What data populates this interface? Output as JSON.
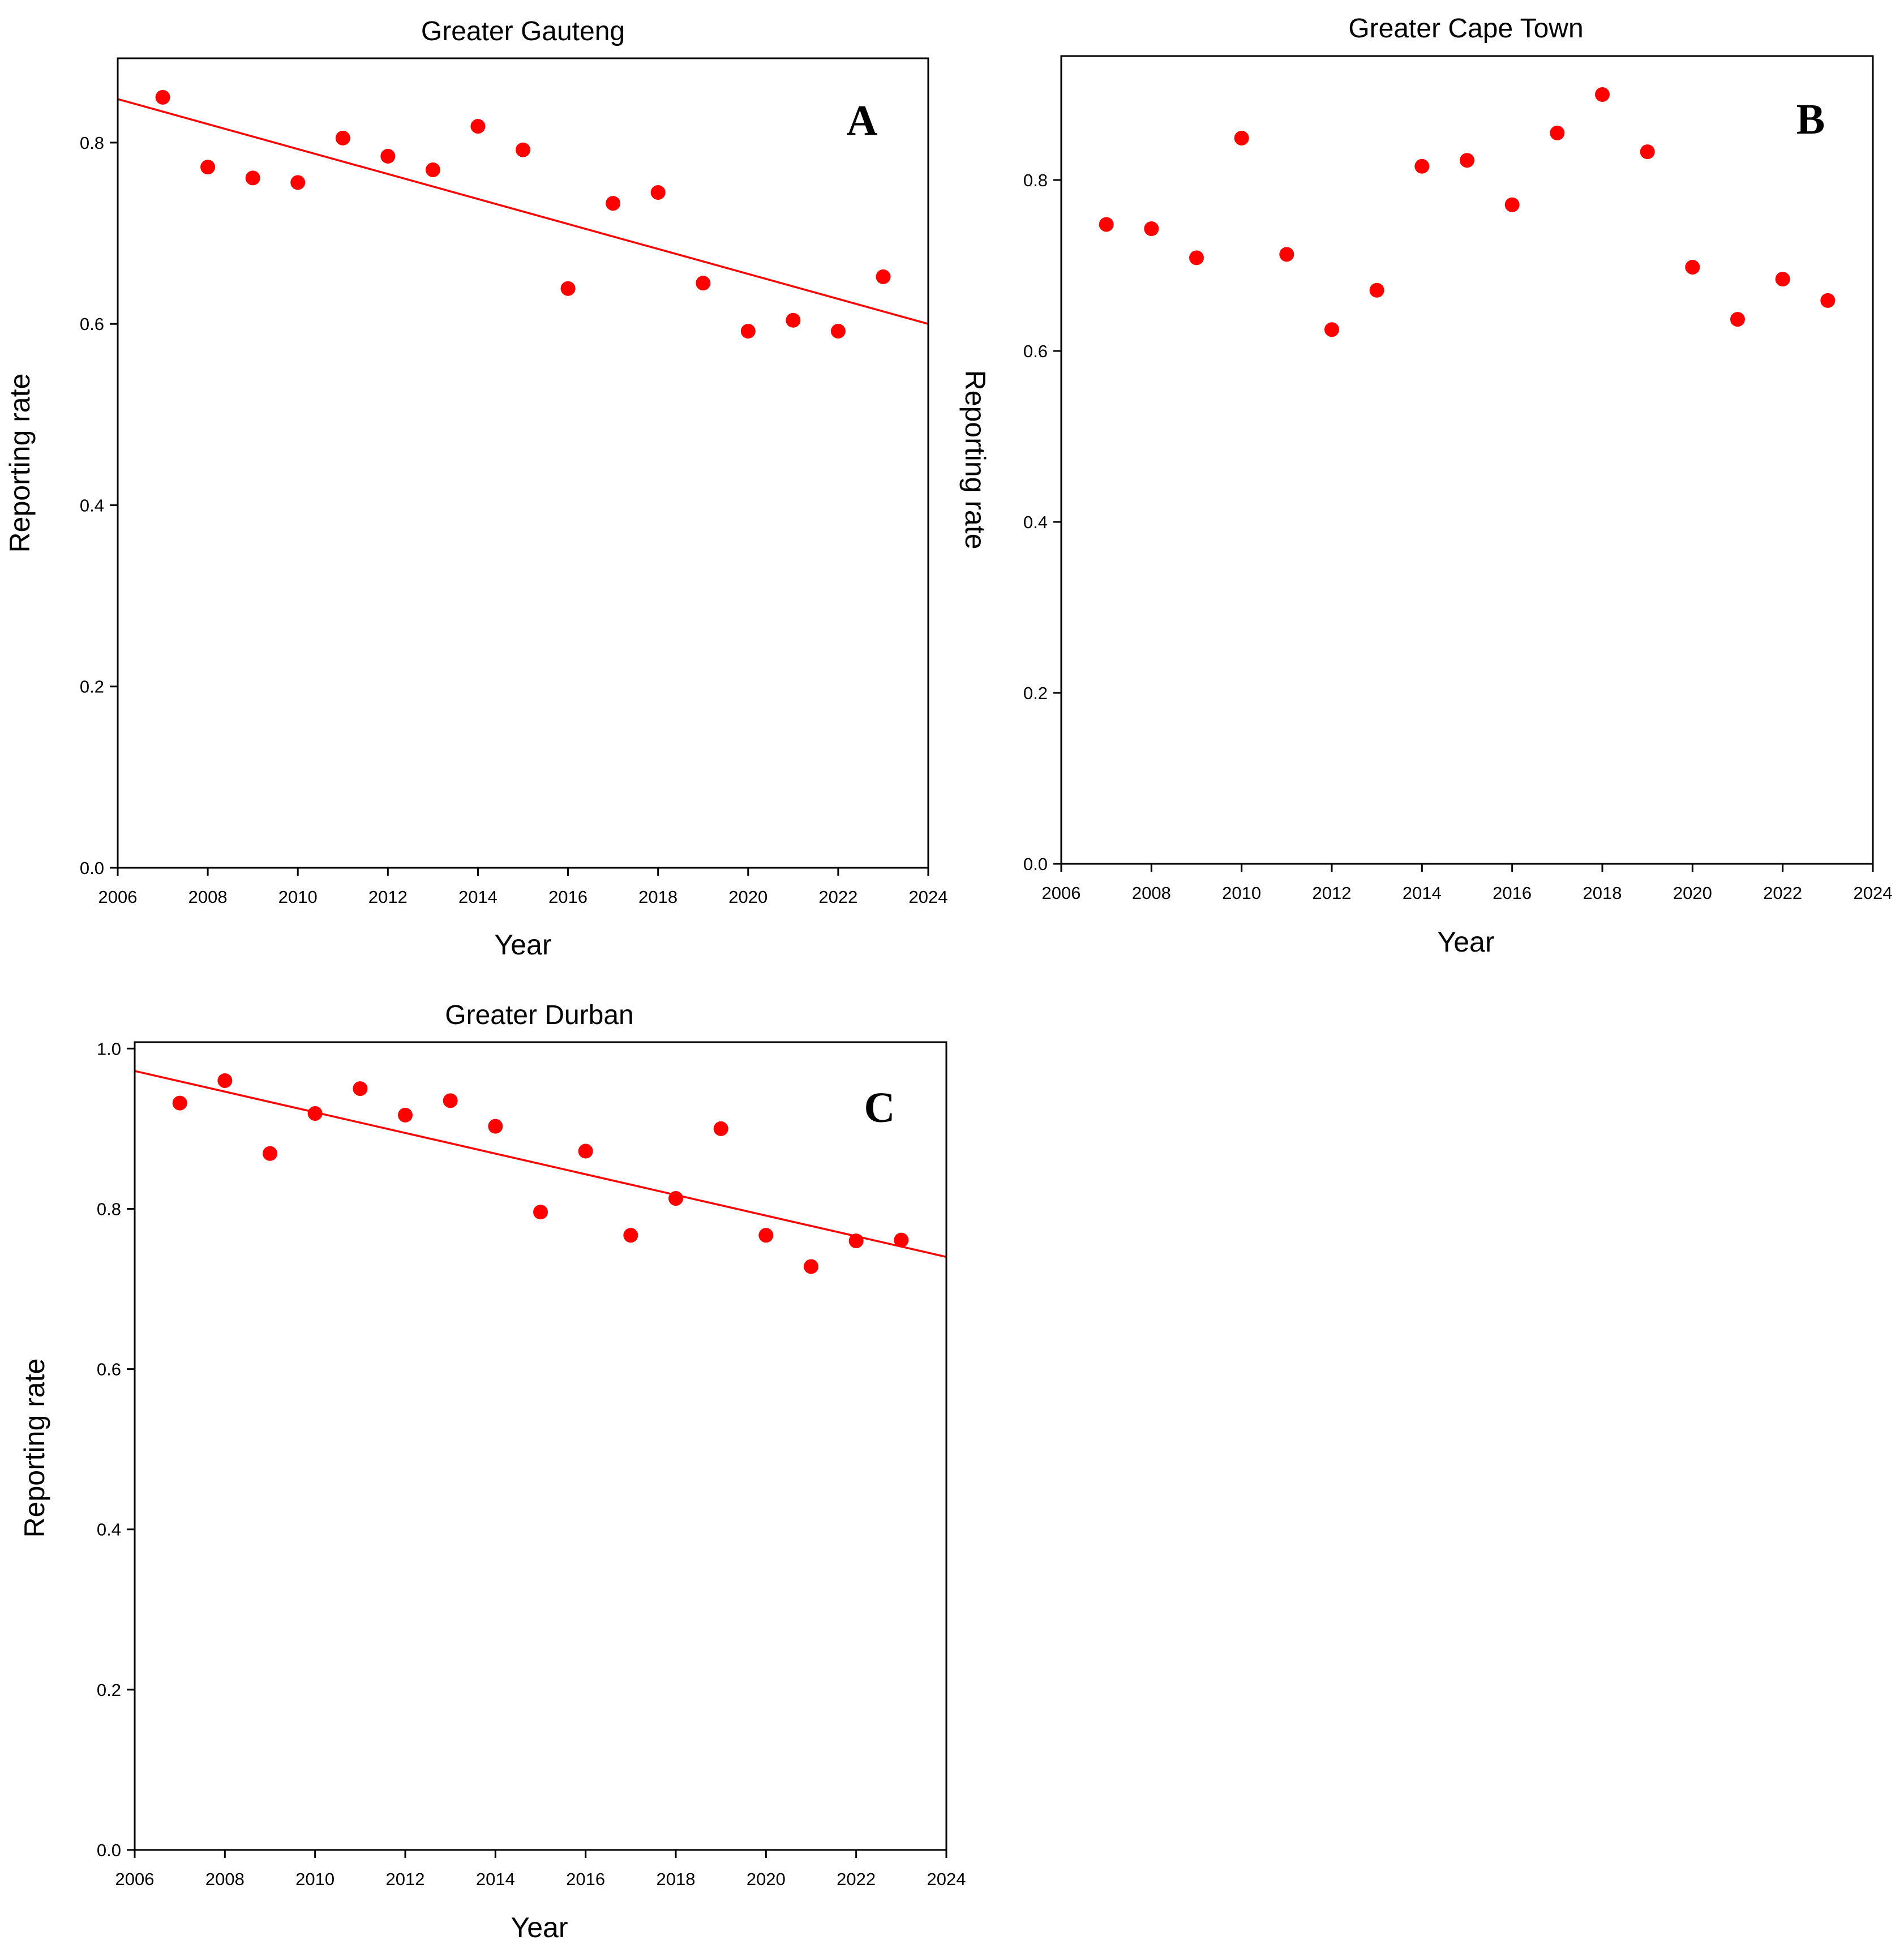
{
  "chart_data": [
    {
      "id": "A",
      "type": "scatter",
      "title": "Greater Gauteng",
      "panel_label": "A",
      "xlabel": "Year",
      "ylabel": "Reporting rate",
      "xlim": [
        2006,
        2024
      ],
      "ylim": [
        0,
        0.893
      ],
      "xticks": [
        2006,
        2008,
        2010,
        2012,
        2014,
        2016,
        2018,
        2020,
        2022,
        2024
      ],
      "yticks": [
        0.0,
        0.2,
        0.4,
        0.6,
        0.8
      ],
      "x": [
        2007,
        2008,
        2009,
        2010,
        2011,
        2012,
        2013,
        2014,
        2015,
        2016,
        2017,
        2018,
        2019,
        2020,
        2021,
        2022,
        2023
      ],
      "y": [
        0.85,
        0.773,
        0.761,
        0.756,
        0.805,
        0.785,
        0.77,
        0.818,
        0.792,
        0.639,
        0.733,
        0.745,
        0.645,
        0.592,
        0.604,
        0.592,
        0.652
      ],
      "trendline": {
        "x": [
          2006,
          2024
        ],
        "y": [
          0.848,
          0.6
        ]
      }
    },
    {
      "id": "B",
      "type": "scatter",
      "title": "Greater Cape Town",
      "panel_label": "B",
      "xlabel": "Year",
      "ylabel": "Reporting rate",
      "xlim": [
        2006,
        2024
      ],
      "ylim": [
        0,
        0.945
      ],
      "xticks": [
        2006,
        2008,
        2010,
        2012,
        2014,
        2016,
        2018,
        2020,
        2022,
        2024
      ],
      "yticks": [
        0.0,
        0.2,
        0.4,
        0.6,
        0.8
      ],
      "x": [
        2007,
        2008,
        2009,
        2010,
        2011,
        2012,
        2013,
        2014,
        2015,
        2016,
        2017,
        2018,
        2019,
        2020,
        2021,
        2022,
        2023
      ],
      "y": [
        0.748,
        0.743,
        0.709,
        0.849,
        0.713,
        0.625,
        0.671,
        0.816,
        0.823,
        0.771,
        0.855,
        0.9,
        0.833,
        0.698,
        0.637,
        0.684,
        0.659
      ],
      "trendline": null
    },
    {
      "id": "C",
      "type": "scatter",
      "title": "Greater Durban",
      "panel_label": "C",
      "xlabel": "Year",
      "ylabel": "Reporting rate",
      "xlim": [
        2006,
        2024
      ],
      "ylim": [
        0,
        1.008
      ],
      "xticks": [
        2006,
        2008,
        2010,
        2012,
        2014,
        2016,
        2018,
        2020,
        2022,
        2024
      ],
      "yticks": [
        0.0,
        0.2,
        0.4,
        0.6,
        0.8,
        1.0
      ],
      "x": [
        2007,
        2008,
        2009,
        2010,
        2011,
        2012,
        2013,
        2014,
        2015,
        2016,
        2017,
        2018,
        2019,
        2020,
        2021,
        2022,
        2023
      ],
      "y": [
        0.932,
        0.96,
        0.869,
        0.919,
        0.95,
        0.917,
        0.935,
        0.903,
        0.796,
        0.872,
        0.767,
        0.813,
        0.9,
        0.767,
        0.728,
        0.76,
        0.761
      ],
      "trendline": {
        "x": [
          2006,
          2024
        ],
        "y": [
          0.972,
          0.74
        ]
      }
    }
  ]
}
